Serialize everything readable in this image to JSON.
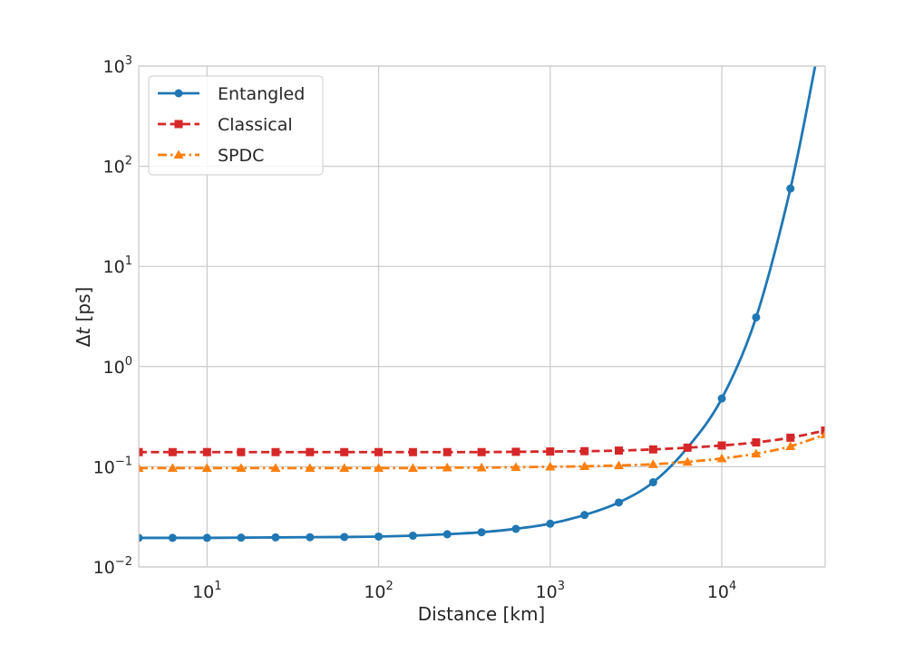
{
  "chart_data": {
    "type": "line",
    "xscale": "log",
    "yscale": "log",
    "xlabel": "Distance [km]",
    "ylabel": "Δt [ps]",
    "ylabel_parts": {
      "delta": "Δ",
      "var": "t",
      "unit": " [ps]"
    },
    "xlim": [
      4,
      40000
    ],
    "ylim": [
      0.01,
      1000
    ],
    "grid": true,
    "legend_position": "upper-left",
    "x_ticks": [
      {
        "base": "10",
        "exp": "1",
        "value": 10
      },
      {
        "base": "10",
        "exp": "2",
        "value": 100
      },
      {
        "base": "10",
        "exp": "3",
        "value": 1000
      },
      {
        "base": "10",
        "exp": "4",
        "value": 10000
      }
    ],
    "y_ticks": [
      {
        "base": "10",
        "exp": "−2",
        "value": 0.01
      },
      {
        "base": "10",
        "exp": "−1",
        "value": 0.1
      },
      {
        "base": "10",
        "exp": "0",
        "value": 1
      },
      {
        "base": "10",
        "exp": "1",
        "value": 10
      },
      {
        "base": "10",
        "exp": "2",
        "value": 100
      },
      {
        "base": "10",
        "exp": "3",
        "value": 1000
      }
    ],
    "series": [
      {
        "name": "Entangled",
        "color": "#1f77b4",
        "linestyle": "solid",
        "marker": "circle",
        "x": [
          4,
          6.3,
          10,
          15.8,
          25.1,
          39.8,
          63.1,
          100,
          158.5,
          251.2,
          398.1,
          631,
          1000,
          1585,
          2512,
          3981,
          6310,
          10000,
          15849,
          25119,
          35000
        ],
        "y": [
          0.0195,
          0.0195,
          0.0195,
          0.0196,
          0.0197,
          0.0198,
          0.0199,
          0.0201,
          0.0205,
          0.0212,
          0.0222,
          0.024,
          0.027,
          0.033,
          0.044,
          0.07,
          0.155,
          0.48,
          3.1,
          60,
          1000
        ]
      },
      {
        "name": "Classical",
        "color": "#d62728",
        "linestyle": "dashed",
        "marker": "square",
        "x": [
          4,
          6.3,
          10,
          15.8,
          25.1,
          39.8,
          63.1,
          100,
          158.5,
          251.2,
          398.1,
          631,
          1000,
          1585,
          2512,
          3981,
          6310,
          10000,
          15849,
          25119,
          40000
        ],
        "y": [
          0.14,
          0.14,
          0.14,
          0.14,
          0.14,
          0.14,
          0.14,
          0.14,
          0.14,
          0.14,
          0.14,
          0.141,
          0.142,
          0.143,
          0.145,
          0.149,
          0.155,
          0.163,
          0.175,
          0.195,
          0.23
        ]
      },
      {
        "name": "SPDC",
        "color": "#ff7f0e",
        "linestyle": "dashdot",
        "marker": "triangle",
        "x": [
          4,
          6.3,
          10,
          15.8,
          25.1,
          39.8,
          63.1,
          100,
          158.5,
          251.2,
          398.1,
          631,
          1000,
          1585,
          2512,
          3981,
          6310,
          10000,
          15849,
          25119,
          40000
        ],
        "y": [
          0.097,
          0.097,
          0.097,
          0.097,
          0.097,
          0.097,
          0.097,
          0.097,
          0.097,
          0.098,
          0.098,
          0.099,
          0.1,
          0.101,
          0.103,
          0.106,
          0.112,
          0.121,
          0.135,
          0.16,
          0.21
        ]
      }
    ]
  }
}
